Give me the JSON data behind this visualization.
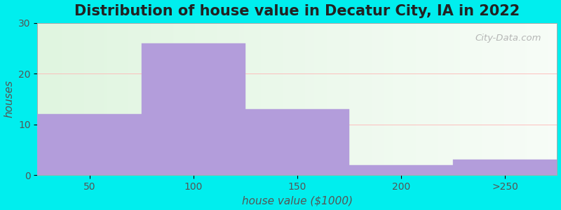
{
  "title": "Distribution of house value in Decatur City, IA in 2022",
  "xlabel": "house value ($1000)",
  "ylabel": "houses",
  "bar_labels": [
    "50",
    "100",
    "150",
    "200",
    ">250"
  ],
  "bar_values": [
    12,
    26,
    13,
    2,
    3
  ],
  "bar_color": "#b39ddb",
  "ylim": [
    0,
    30
  ],
  "yticks": [
    0,
    10,
    20,
    30
  ],
  "background_color": "#00eeee",
  "title_fontsize": 15,
  "label_fontsize": 11,
  "tick_fontsize": 10,
  "watermark": "City-Data.com"
}
